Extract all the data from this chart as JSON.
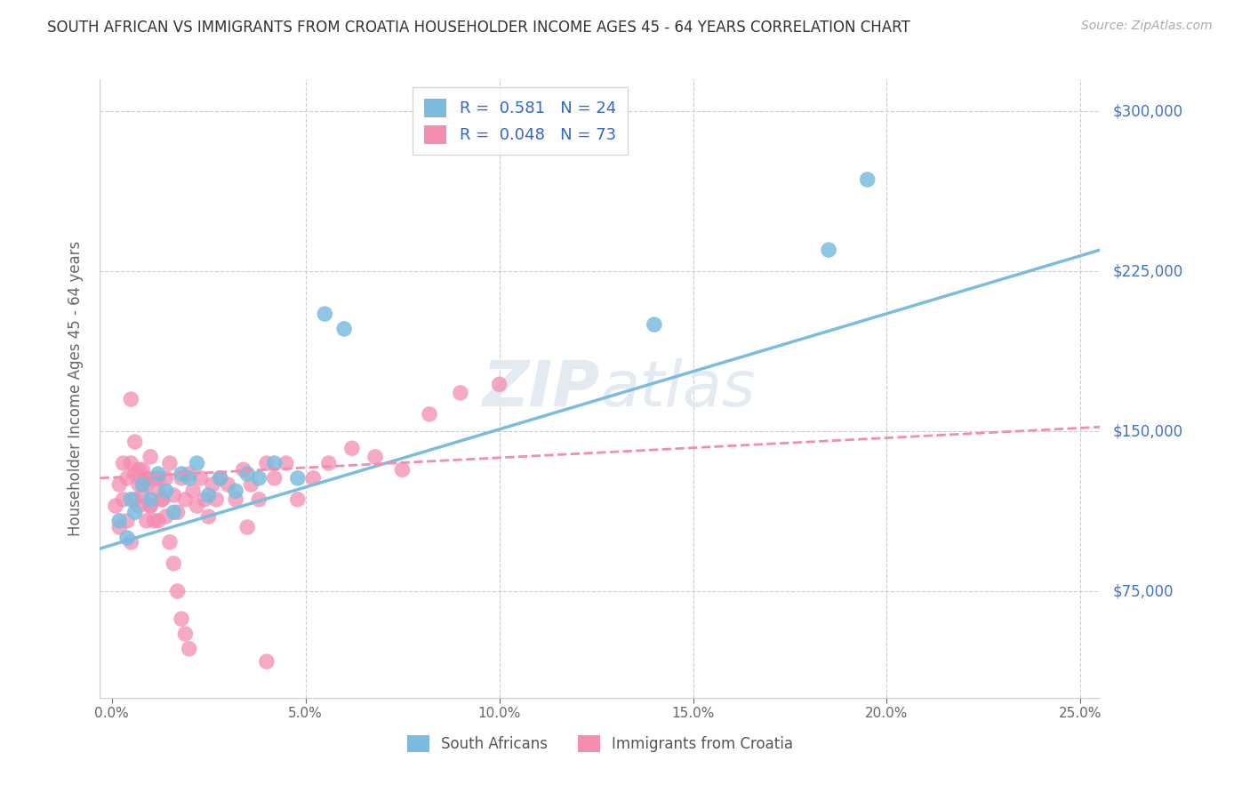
{
  "title": "SOUTH AFRICAN VS IMMIGRANTS FROM CROATIA HOUSEHOLDER INCOME AGES 45 - 64 YEARS CORRELATION CHART",
  "source": "Source: ZipAtlas.com",
  "ylabel": "Householder Income Ages 45 - 64 years",
  "xlabel_ticks": [
    "0.0%",
    "5.0%",
    "10.0%",
    "15.0%",
    "20.0%",
    "25.0%"
  ],
  "xlabel_vals": [
    0.0,
    0.05,
    0.1,
    0.15,
    0.2,
    0.25
  ],
  "ytick_labels": [
    "$75,000",
    "$150,000",
    "$225,000",
    "$300,000"
  ],
  "ytick_vals": [
    75000,
    150000,
    225000,
    300000
  ],
  "ylim": [
    25000,
    315000
  ],
  "xlim": [
    -0.003,
    0.255
  ],
  "legend1_label": "R =  0.581   N = 24",
  "legend2_label": "R =  0.048   N = 73",
  "legend_series1": "South Africans",
  "legend_series2": "Immigrants from Croatia",
  "color_blue": "#7bbcde",
  "color_pink": "#f48cb1",
  "watermark_zip": "ZIP",
  "watermark_atlas": "atlas",
  "blue_scatter_x": [
    0.002,
    0.004,
    0.005,
    0.006,
    0.008,
    0.01,
    0.012,
    0.014,
    0.016,
    0.018,
    0.02,
    0.022,
    0.025,
    0.028,
    0.032,
    0.035,
    0.038,
    0.042,
    0.048,
    0.055,
    0.06,
    0.14,
    0.185,
    0.195
  ],
  "blue_scatter_y": [
    108000,
    100000,
    118000,
    112000,
    125000,
    118000,
    130000,
    122000,
    112000,
    130000,
    128000,
    135000,
    120000,
    128000,
    122000,
    130000,
    128000,
    135000,
    128000,
    205000,
    198000,
    200000,
    235000,
    268000
  ],
  "pink_scatter_x": [
    0.001,
    0.002,
    0.002,
    0.003,
    0.003,
    0.004,
    0.004,
    0.005,
    0.005,
    0.006,
    0.006,
    0.007,
    0.007,
    0.008,
    0.008,
    0.009,
    0.009,
    0.01,
    0.01,
    0.011,
    0.012,
    0.012,
    0.013,
    0.014,
    0.015,
    0.016,
    0.017,
    0.018,
    0.019,
    0.02,
    0.021,
    0.022,
    0.023,
    0.024,
    0.025,
    0.026,
    0.027,
    0.028,
    0.03,
    0.032,
    0.034,
    0.036,
    0.038,
    0.04,
    0.042,
    0.045,
    0.048,
    0.052,
    0.056,
    0.062,
    0.068,
    0.075,
    0.082,
    0.09,
    0.1,
    0.005,
    0.006,
    0.007,
    0.008,
    0.009,
    0.01,
    0.011,
    0.012,
    0.013,
    0.014,
    0.015,
    0.016,
    0.017,
    0.018,
    0.019,
    0.02,
    0.035,
    0.04
  ],
  "pink_scatter_y": [
    115000,
    105000,
    125000,
    118000,
    135000,
    108000,
    128000,
    98000,
    135000,
    118000,
    130000,
    125000,
    115000,
    132000,
    120000,
    108000,
    125000,
    138000,
    115000,
    128000,
    108000,
    122000,
    118000,
    128000,
    135000,
    120000,
    112000,
    128000,
    118000,
    130000,
    122000,
    115000,
    128000,
    118000,
    110000,
    125000,
    118000,
    128000,
    125000,
    118000,
    132000,
    125000,
    118000,
    135000,
    128000,
    135000,
    118000,
    128000,
    135000,
    142000,
    138000,
    132000,
    158000,
    168000,
    172000,
    165000,
    145000,
    132000,
    125000,
    128000,
    115000,
    108000,
    128000,
    118000,
    110000,
    98000,
    88000,
    75000,
    62000,
    55000,
    48000,
    105000,
    42000
  ],
  "blue_line_x": [
    -0.003,
    0.255
  ],
  "blue_line_y": [
    95000,
    235000
  ],
  "pink_line_x": [
    -0.003,
    0.255
  ],
  "pink_line_y": [
    128000,
    152000
  ]
}
